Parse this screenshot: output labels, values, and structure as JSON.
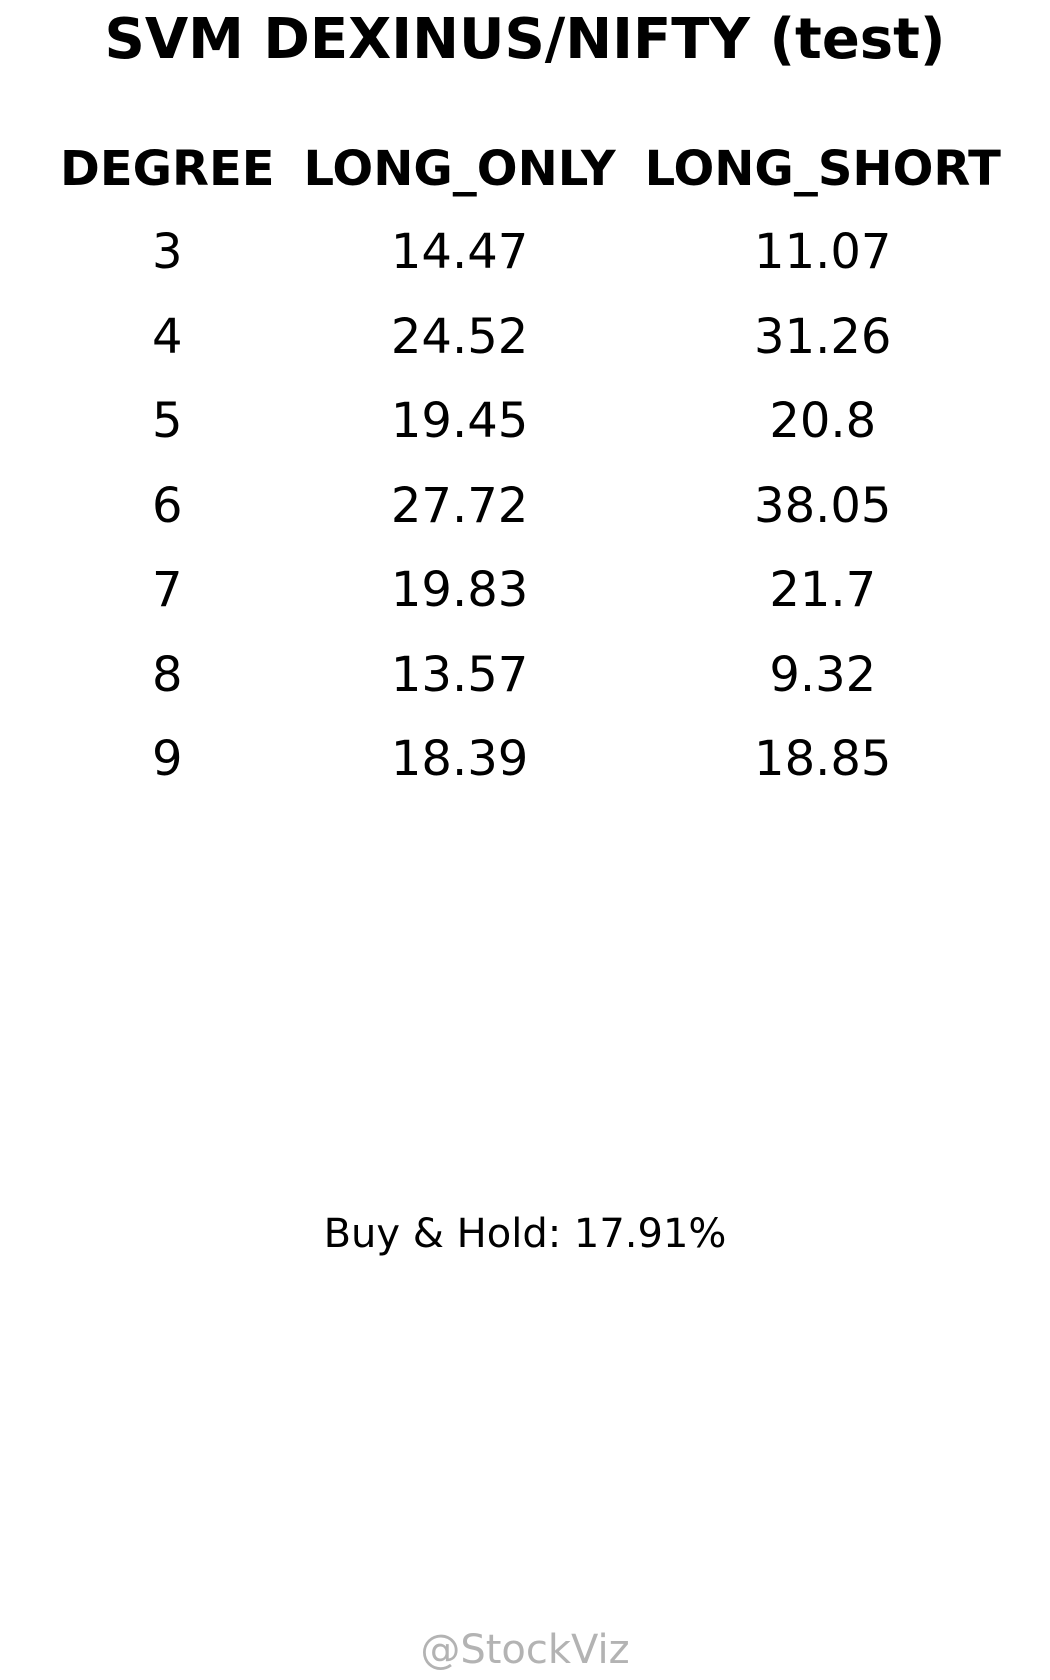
{
  "chart_data": {
    "type": "table",
    "title": "SVM DEXINUS/NIFTY (test)",
    "columns": [
      "DEGREE",
      "LONG_ONLY",
      "LONG_SHORT"
    ],
    "rows": [
      [
        "3",
        "14.47",
        "11.07"
      ],
      [
        "4",
        "24.52",
        "31.26"
      ],
      [
        "5",
        "19.45",
        "20.8"
      ],
      [
        "6",
        "27.72",
        "38.05"
      ],
      [
        "7",
        "19.83",
        "21.7"
      ],
      [
        "8",
        "13.57",
        "9.32"
      ],
      [
        "9",
        "18.39",
        "18.85"
      ]
    ],
    "footnote": "Buy & Hold: 17.91%",
    "watermark": "@StockViz"
  }
}
